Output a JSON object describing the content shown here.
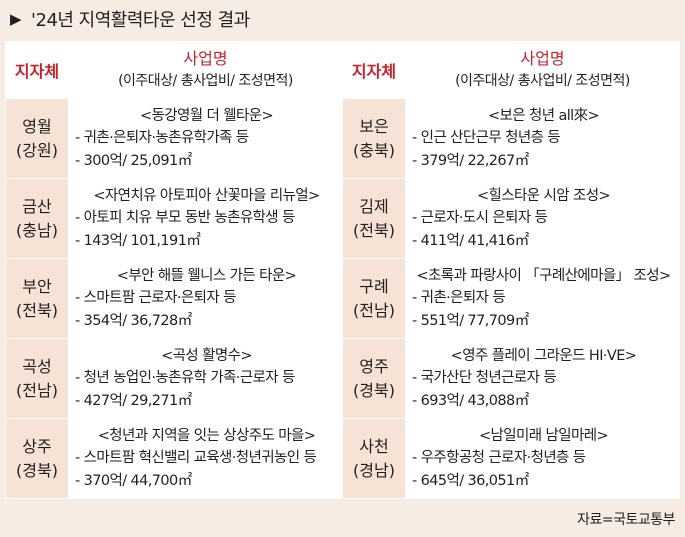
{
  "title": "'24년 지역활력타운 선정 결과",
  "header": {
    "region": "지자체",
    "project_title": "사업명",
    "project_sub": "(이주대상/ 총사업비/ 조성면적)"
  },
  "rows": [
    {
      "left": {
        "region1": "영월",
        "region2": "(강원)",
        "name": "<동강영월 더 웰타운>",
        "target": "- 귀촌·은퇴자·농촌유학가족 등",
        "stats": "- 300억/ 25,091㎡"
      },
      "right": {
        "region1": "보은",
        "region2": "(충북)",
        "name": "<보은 청년 all來>",
        "target": "- 인근 산단근무 청년층 등",
        "stats": "- 379억/ 22,267㎡"
      }
    },
    {
      "left": {
        "region1": "금산",
        "region2": "(충남)",
        "name": "<자연치유 아토피아 산꽃마을 리뉴얼>",
        "target": "- 아토피 치유 부모 동반 농촌유학생 등",
        "stats": "- 143억/ 101,191㎡"
      },
      "right": {
        "region1": "김제",
        "region2": "(전북)",
        "name": "<힐스타운 시암 조성>",
        "target": "- 근로자·도시 은퇴자 등",
        "stats": "- 411억/ 41,416㎡"
      }
    },
    {
      "left": {
        "region1": "부안",
        "region2": "(전북)",
        "name": "<부안 해뜰 웰니스 가든 타운>",
        "target": "- 스마트팜 근로자·은퇴자 등",
        "stats": "- 354억/ 36,728㎡"
      },
      "right": {
        "region1": "구례",
        "region2": "(전남)",
        "name": "<초록과 파랑사이 「구례산에마을」 조성>",
        "target": "- 귀촌·은퇴자 등",
        "stats": "- 551억/ 77,709㎡"
      }
    },
    {
      "left": {
        "region1": "곡성",
        "region2": "(전남)",
        "name": "<곡성 활명수>",
        "target": "- 청년 농업인·농촌유학 가족·근로자 등",
        "stats": "- 427억/ 29,271㎡"
      },
      "right": {
        "region1": "영주",
        "region2": "(경북)",
        "name": "<영주 플레이 그라운드 HI·VE>",
        "target": "- 국가산단 청년근로자 등",
        "stats": "- 693억/ 43,088㎡"
      }
    },
    {
      "left": {
        "region1": "상주",
        "region2": "(경북)",
        "name": "<청년과 지역을 잇는 상상주도 마을>",
        "target": "- 스마트팜 혁신밸리 교육생·청년귀농인 등",
        "stats": "- 370억/ 44,700㎡"
      },
      "right": {
        "region1": "사천",
        "region2": "(경남)",
        "name": "<남일미래 남일마레>",
        "target": "- 우주항공청 근로자·청년층 등",
        "stats": "- 645억/ 36,051㎡"
      }
    }
  ],
  "source": "자료=국토교통부"
}
